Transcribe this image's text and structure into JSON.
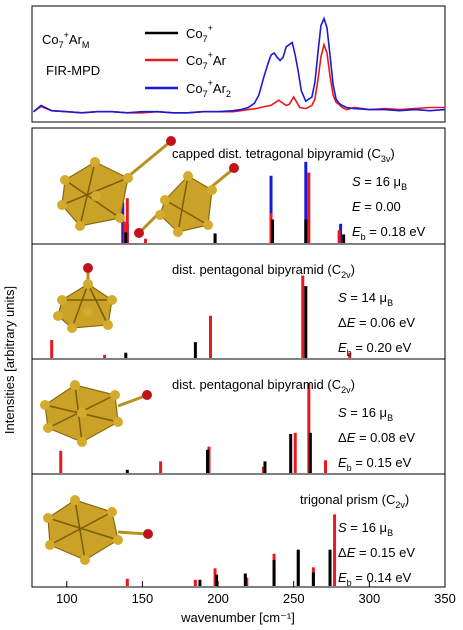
{
  "figure": {
    "ylabel": "Intensities [arbitrary units]",
    "xlabel": "wavenumber [cm⁻¹]",
    "xticks": [
      100,
      150,
      200,
      250,
      300,
      350
    ],
    "xlim": [
      77,
      350
    ]
  },
  "colors": {
    "Co7+": "#000000",
    "Co7+Ar": "#e8191e",
    "Co7+Ar2": "#1a1ad6"
  },
  "chart_data": [
    {
      "type": "line",
      "panel": "experiment",
      "labels": [
        "Co7+ArM",
        "FIR-MPD"
      ],
      "legend": [
        "Co7+",
        "Co7+Ar",
        "Co7+Ar2"
      ],
      "legend_placement": "top-center",
      "ylim": [
        0,
        1.05
      ],
      "series": [
        {
          "name": "Co7+Ar",
          "color": "#e8191e",
          "x": [
            78,
            83,
            90,
            100,
            110,
            120,
            130,
            140,
            150,
            160,
            170,
            180,
            190,
            200,
            210,
            215,
            220,
            225,
            228,
            231,
            235,
            238,
            240,
            243,
            245,
            247,
            250,
            254,
            258,
            262,
            264,
            266,
            268,
            270,
            272,
            274,
            276,
            278,
            280,
            282,
            285,
            290,
            300,
            310,
            320,
            330,
            340,
            350
          ],
          "y": [
            0.06,
            0.11,
            0.07,
            0.06,
            0.05,
            0.06,
            0.06,
            0.05,
            0.05,
            0.06,
            0.05,
            0.05,
            0.06,
            0.06,
            0.06,
            0.07,
            0.08,
            0.09,
            0.1,
            0.11,
            0.12,
            0.15,
            0.17,
            0.14,
            0.12,
            0.13,
            0.2,
            0.1,
            0.09,
            0.12,
            0.18,
            0.36,
            0.58,
            0.7,
            0.62,
            0.4,
            0.22,
            0.15,
            0.13,
            0.1,
            0.08,
            0.1,
            0.08,
            0.09,
            0.08,
            0.09,
            0.1,
            0.1
          ]
        },
        {
          "name": "Co7+Ar2",
          "color": "#1a1ad6",
          "x": [
            78,
            83,
            90,
            100,
            110,
            120,
            130,
            140,
            150,
            160,
            170,
            180,
            190,
            200,
            210,
            215,
            220,
            224,
            227,
            230,
            233,
            235,
            237,
            239,
            241,
            243,
            245,
            247,
            249,
            251,
            253,
            255,
            258,
            262,
            264,
            266,
            268,
            270,
            272,
            274,
            276,
            278,
            280,
            282,
            285,
            290,
            300,
            310,
            320,
            330,
            340,
            350
          ],
          "y": [
            0.06,
            0.12,
            0.07,
            0.06,
            0.05,
            0.06,
            0.06,
            0.05,
            0.06,
            0.06,
            0.05,
            0.05,
            0.06,
            0.06,
            0.07,
            0.08,
            0.1,
            0.14,
            0.22,
            0.38,
            0.52,
            0.6,
            0.62,
            0.58,
            0.55,
            0.58,
            0.68,
            0.7,
            0.72,
            0.6,
            0.44,
            0.26,
            0.16,
            0.2,
            0.34,
            0.62,
            0.88,
            0.95,
            0.86,
            0.6,
            0.32,
            0.18,
            0.14,
            0.12,
            0.1,
            0.09,
            0.08,
            0.08,
            0.07,
            0.08,
            0.07,
            0.08
          ]
        }
      ]
    },
    {
      "type": "bar",
      "panel": "capped dist. tetragonal bipyramid",
      "title": "capped dist. tetragonal bipyramid (C3v)",
      "params": [
        "S = 16 μB",
        "E = 0.00",
        "Eb = 0.18 eV"
      ],
      "ylim": [
        0,
        1.05
      ],
      "series": [
        {
          "name": "Co7+Ar2",
          "color": "#1a1ad6",
          "x": [
            137,
            140,
            198,
            235,
            258,
            281
          ],
          "y": [
            0.38,
            0.18,
            0.08,
            0.63,
            0.76,
            0.18
          ]
        },
        {
          "name": "Co7+Ar",
          "color": "#e8191e",
          "x": [
            138,
            140,
            152,
            198,
            235,
            260,
            280
          ],
          "y": [
            0.2,
            0.42,
            0.04,
            0.08,
            0.28,
            0.66,
            0.12
          ]
        },
        {
          "name": "Co7+",
          "color": "#000000",
          "x": [
            139,
            198,
            236,
            258,
            283
          ],
          "y": [
            0.1,
            0.09,
            0.22,
            0.22,
            0.08
          ]
        }
      ]
    },
    {
      "type": "bar",
      "panel": "dist. pentagonal bipyramid (S = 14)",
      "title": "dist. pentagonal bipyramid (C2v)",
      "params": [
        "S = 14 μB",
        "ΔE = 0.06 eV",
        "Eb = 0.20 eV"
      ],
      "ylim": [
        0,
        1.05
      ],
      "series": [
        {
          "name": "Co7+Ar",
          "color": "#e8191e",
          "x": [
            90,
            125,
            195,
            256,
            287
          ],
          "y": [
            0.17,
            0.03,
            0.4,
            0.78,
            0.05
          ]
        },
        {
          "name": "Co7+",
          "color": "#000000",
          "x": [
            139,
            185,
            258
          ],
          "y": [
            0.05,
            0.15,
            0.68
          ]
        }
      ]
    },
    {
      "type": "bar",
      "panel": "dist. pentagonal bipyramid (S = 16)",
      "title": "dist. pentagonal bipyramid (C2v)",
      "params": [
        "S = 16 μB",
        "ΔE = 0.08 eV",
        "Eb = 0.15 eV"
      ],
      "ylim": [
        0,
        1.05
      ],
      "series": [
        {
          "name": "Co7+Ar",
          "color": "#e8191e",
          "x": [
            96,
            162,
            194,
            230,
            251,
            260,
            271
          ],
          "y": [
            0.21,
            0.11,
            0.25,
            0.06,
            0.38,
            0.85,
            0.12
          ]
        },
        {
          "name": "Co7+",
          "color": "#000000",
          "x": [
            140,
            193,
            231,
            248,
            261
          ],
          "y": [
            0.03,
            0.22,
            0.11,
            0.37,
            0.38
          ]
        }
      ]
    },
    {
      "type": "bar",
      "panel": "trigonal prism",
      "title": "trigonal prism (C2v)",
      "params": [
        "S = 16 μB",
        "ΔE = 0.15 eV",
        "Eb = 0.14 eV"
      ],
      "ylim": [
        0,
        1.05
      ],
      "series": [
        {
          "name": "Co7+Ar",
          "color": "#e8191e",
          "x": [
            140,
            185,
            198,
            219,
            237,
            253,
            263,
            277
          ],
          "y": [
            0.07,
            0.06,
            0.17,
            0.08,
            0.31,
            0.34,
            0.18,
            0.69
          ]
        },
        {
          "name": "Co7+",
          "color": "#000000",
          "x": [
            188,
            199,
            218,
            237,
            253,
            263,
            274
          ],
          "y": [
            0.06,
            0.11,
            0.12,
            0.25,
            0.35,
            0.13,
            0.35
          ]
        }
      ]
    }
  ]
}
